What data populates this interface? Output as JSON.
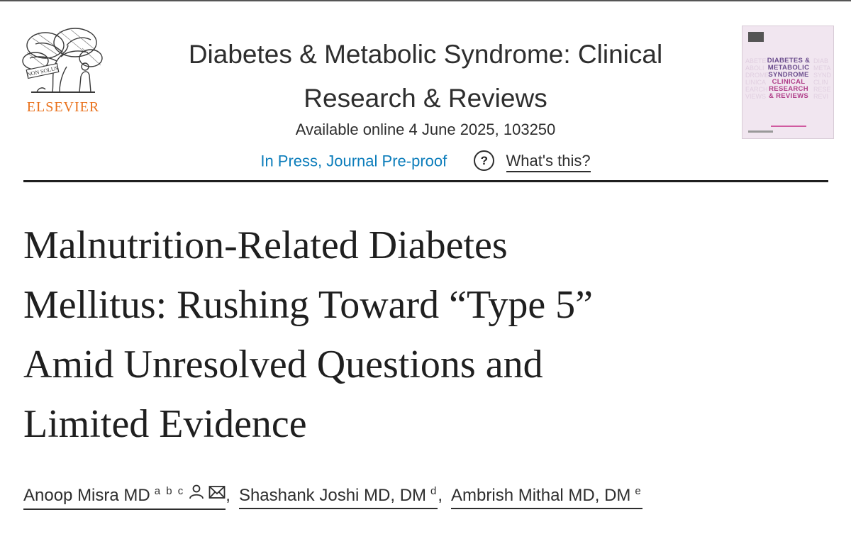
{
  "publisher": {
    "name": "ELSEVIER",
    "logo_motto": "NON SOLUS"
  },
  "journal": {
    "title_line1": "Diabetes & Metabolic Syndrome: Clinical",
    "title_line2": "Research & Reviews",
    "available": "Available online 4 June 2025, 103250",
    "status": "In Press, Journal Pre-proof",
    "help_label": "What's this?",
    "cover_lines": [
      "DIABETES &",
      "METABOLIC",
      "SYNDROME",
      "CLINICAL",
      "RESEARCH",
      "& REVIEWS"
    ]
  },
  "article": {
    "title_lines": [
      "Malnutrition-Related Diabetes",
      "Mellitus: Rushing Toward “Type 5”",
      "Amid Unresolved Questions and",
      "Limited Evidence"
    ]
  },
  "authors": [
    {
      "name": "Anoop Misra MD",
      "affiliations": "a b c"
    },
    {
      "name": "Shashank Joshi MD, DM",
      "affiliations": "d"
    },
    {
      "name": "Ambrish Mithal MD, DM",
      "affiliations": "e"
    }
  ],
  "colors": {
    "publisher_orange": "#e9711c",
    "link_blue": "#0c7dbb",
    "cover_pink": "#f1e6f0"
  }
}
